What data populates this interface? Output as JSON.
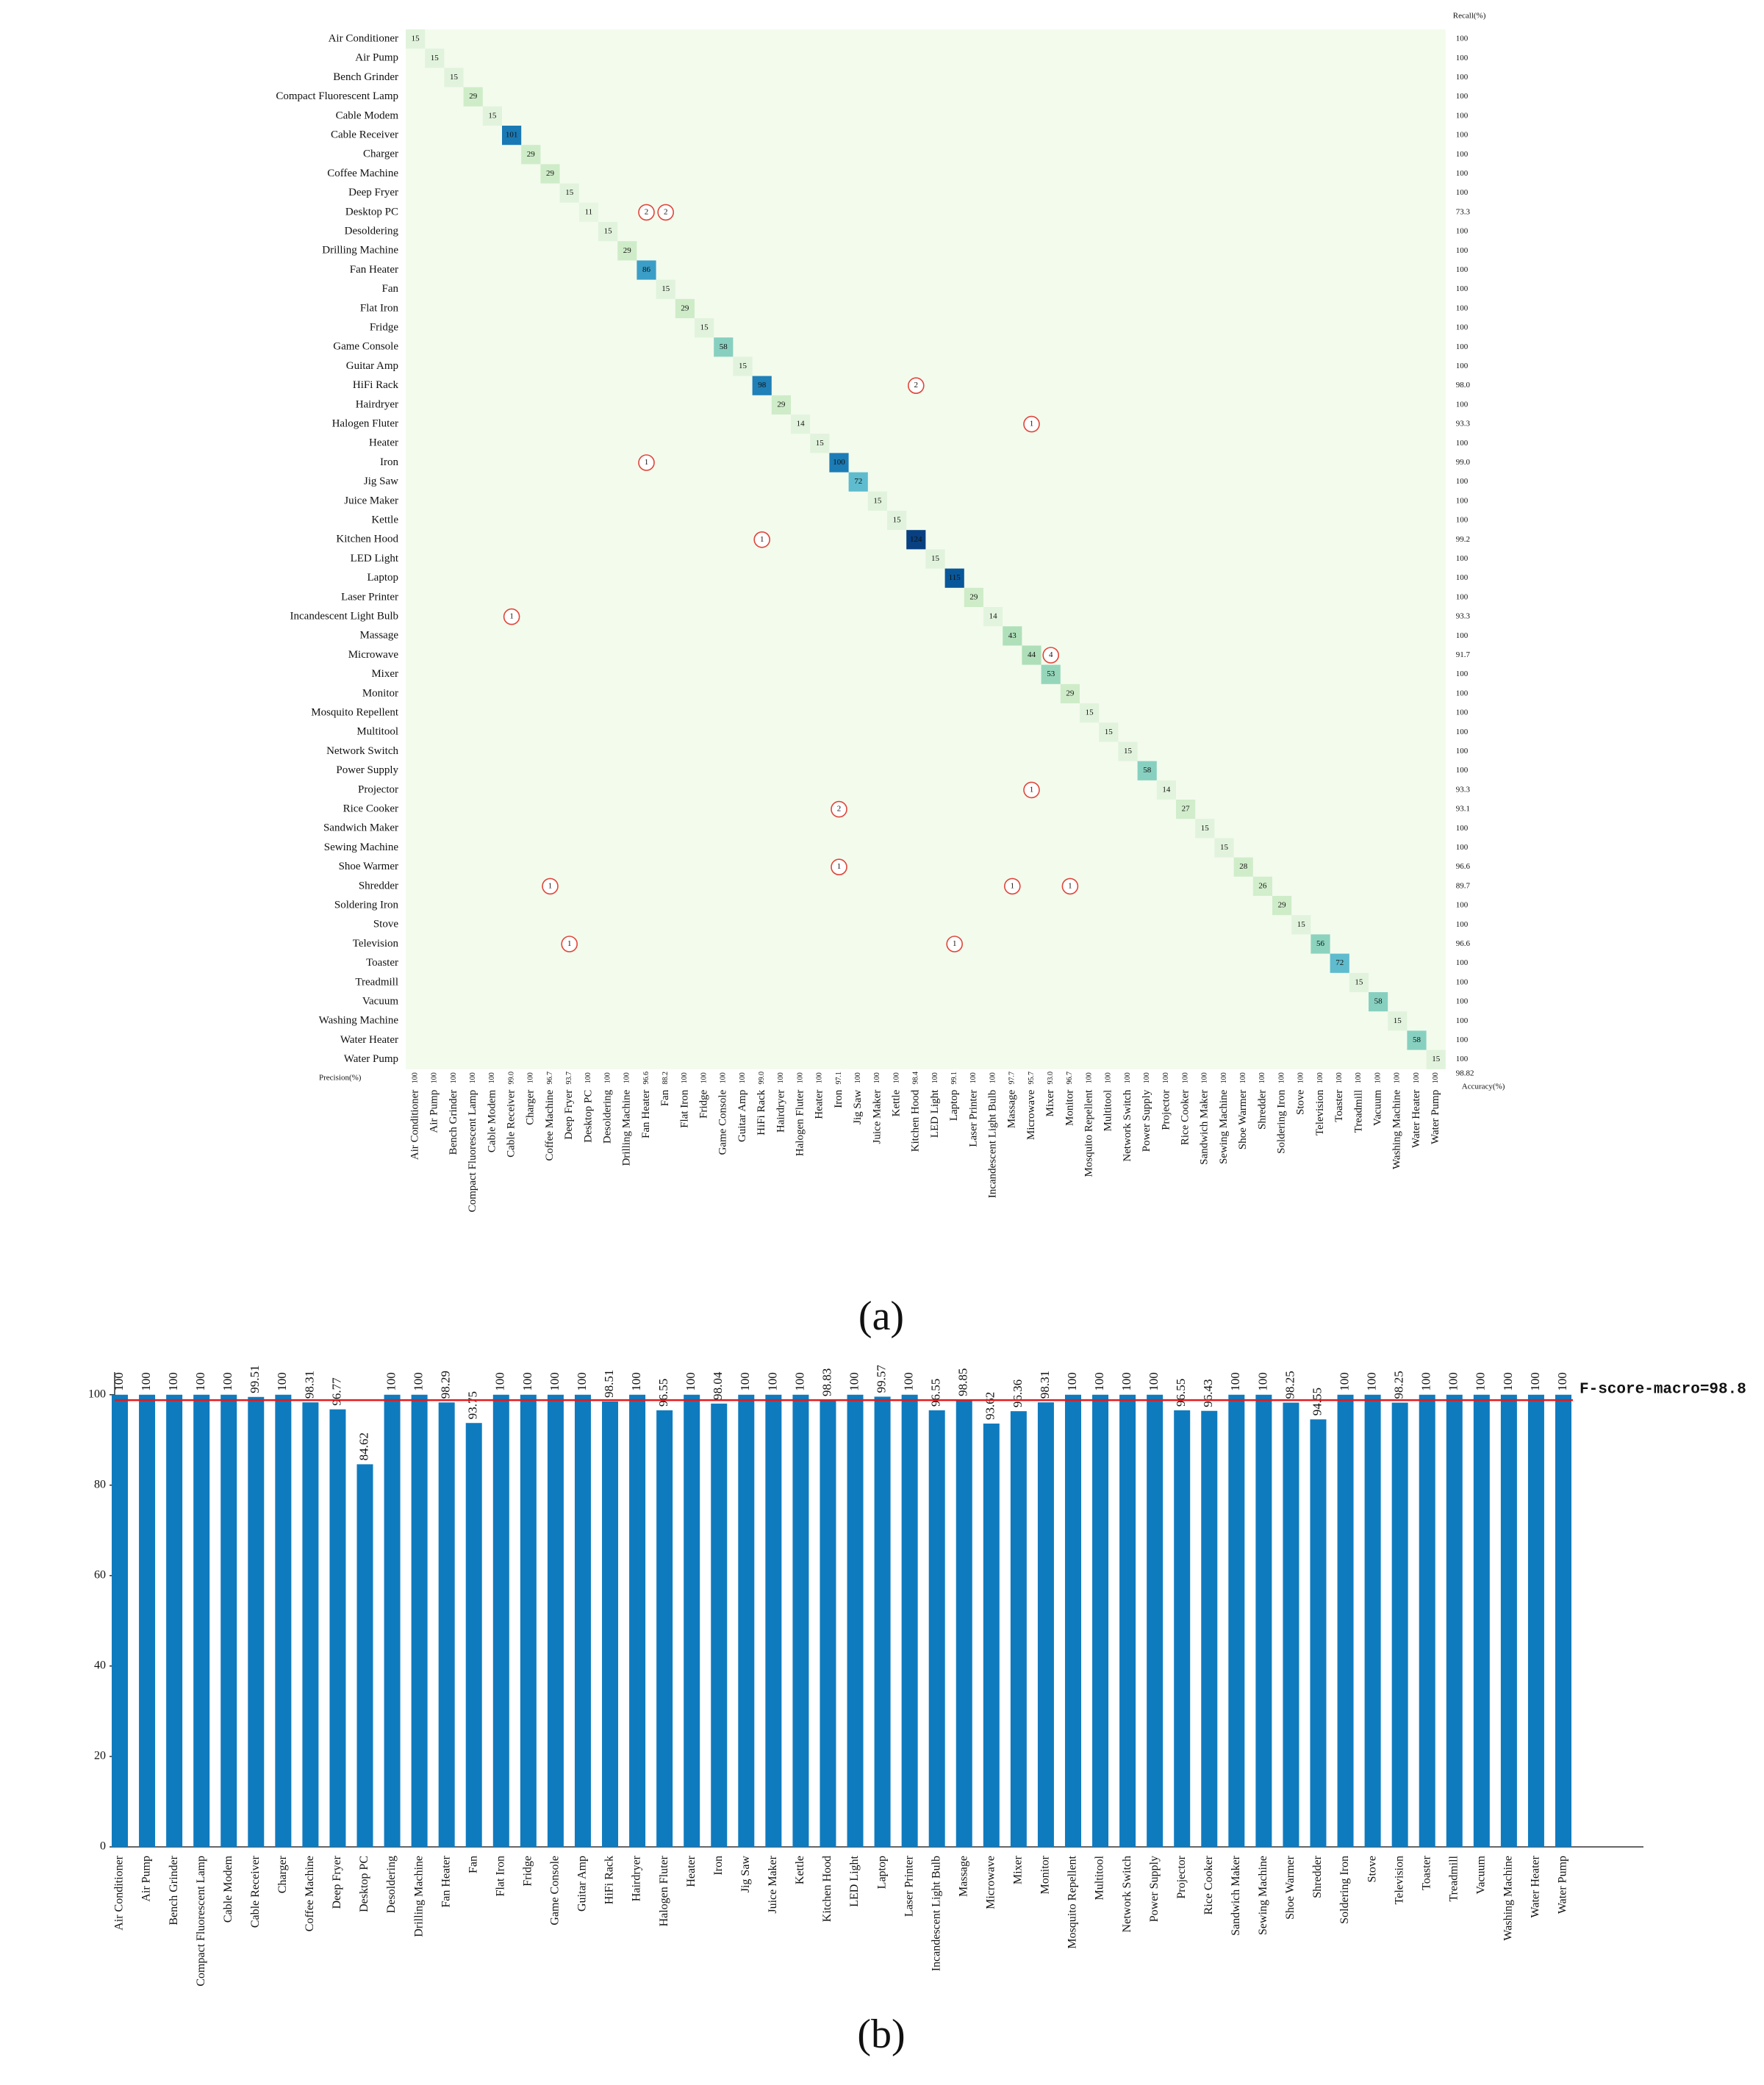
{
  "chart_data": [
    {
      "type": "confusion_matrix",
      "colormap": "GnBu",
      "caption": "(a)",
      "classes": [
        "Air Conditioner",
        "Air Pump",
        "Bench Grinder",
        "Compact Fluorescent Lamp",
        "Cable Modem",
        "Cable Receiver",
        "Charger",
        "Coffee Machine",
        "Deep Fryer",
        "Desktop PC",
        "Desoldering",
        "Drilling Machine",
        "Fan Heater",
        "Fan",
        "Flat Iron",
        "Fridge",
        "Game Console",
        "Guitar Amp",
        "HiFi Rack",
        "Hairdryer",
        "Halogen Fluter",
        "Heater",
        "Iron",
        "Jig Saw",
        "Juice Maker",
        "Kettle",
        "Kitchen Hood",
        "LED Light",
        "Laptop",
        "Laser Printer",
        "Incandescent Light Bulb",
        "Massage",
        "Microwave",
        "Mixer",
        "Monitor",
        "Mosquito Repellent",
        "Multitool",
        "Network Switch",
        "Power Supply",
        "Projector",
        "Rice Cooker",
        "Sandwich Maker",
        "Sewing Machine",
        "Shoe Warmer",
        "Shredder",
        "Soldering Iron",
        "Stove",
        "Television",
        "Toaster",
        "Treadmill",
        "Vacuum",
        "Washing Machine",
        "Water Heater",
        "Water Pump"
      ],
      "diagonal": [
        15,
        15,
        15,
        29,
        15,
        101,
        29,
        29,
        15,
        11,
        15,
        29,
        86,
        15,
        29,
        15,
        58,
        15,
        98,
        29,
        14,
        15,
        100,
        72,
        15,
        15,
        124,
        15,
        115,
        29,
        14,
        43,
        44,
        53,
        29,
        15,
        15,
        15,
        58,
        14,
        27,
        15,
        15,
        28,
        26,
        29,
        15,
        56,
        72,
        15,
        58,
        15,
        58,
        15
      ],
      "errors": [
        {
          "row": 9,
          "col": 12,
          "value": 2
        },
        {
          "row": 9,
          "col": 13,
          "value": 2
        },
        {
          "row": 18,
          "col": 26,
          "value": 2
        },
        {
          "row": 20,
          "col": 32,
          "value": 1
        },
        {
          "row": 22,
          "col": 12,
          "value": 1
        },
        {
          "row": 26,
          "col": 18,
          "value": 1
        },
        {
          "row": 30,
          "col": 5,
          "value": 1
        },
        {
          "row": 32,
          "col": 33,
          "value": 4
        },
        {
          "row": 39,
          "col": 32,
          "value": 1
        },
        {
          "row": 40,
          "col": 22,
          "value": 2
        },
        {
          "row": 43,
          "col": 22,
          "value": 1
        },
        {
          "row": 44,
          "col": 7,
          "value": 1
        },
        {
          "row": 44,
          "col": 31,
          "value": 1
        },
        {
          "row": 44,
          "col": 34,
          "value": 1
        },
        {
          "row": 47,
          "col": 8,
          "value": 1
        },
        {
          "row": 47,
          "col": 28,
          "value": 1
        }
      ],
      "recall_label": "Recall(%)",
      "recall": [
        "100",
        "100",
        "100",
        "100",
        "100",
        "100",
        "100",
        "100",
        "100",
        "73.3",
        "100",
        "100",
        "100",
        "100",
        "100",
        "100",
        "100",
        "100",
        "98.0",
        "100",
        "93.3",
        "100",
        "99.0",
        "100",
        "100",
        "100",
        "99.2",
        "100",
        "100",
        "100",
        "93.3",
        "100",
        "91.7",
        "100",
        "100",
        "100",
        "100",
        "100",
        "100",
        "93.3",
        "93.1",
        "100",
        "100",
        "96.6",
        "89.7",
        "100",
        "100",
        "96.6",
        "100",
        "100",
        "100",
        "100",
        "100",
        "100"
      ],
      "precision_label": "Precision(%)",
      "precision": [
        "100",
        "100",
        "100",
        "100",
        "100",
        "99.0",
        "100",
        "96.7",
        "93.7",
        "100",
        "100",
        "100",
        "96.6",
        "88.2",
        "100",
        "100",
        "100",
        "100",
        "99.0",
        "100",
        "100",
        "100",
        "97.1",
        "100",
        "100",
        "100",
        "98.4",
        "100",
        "99.1",
        "100",
        "100",
        "97.7",
        "95.7",
        "93.0",
        "96.7",
        "100",
        "100",
        "100",
        "100",
        "100",
        "100",
        "100",
        "100",
        "100",
        "100",
        "100",
        "100",
        "100",
        "100",
        "100",
        "100",
        "100",
        "100",
        "100"
      ],
      "accuracy_label": "Accuracy(%)",
      "accuracy": "98.82"
    },
    {
      "type": "bar",
      "caption": "(b)",
      "color": "#0f7bbf",
      "categories": [
        "Air Conditioner",
        "Air Pump",
        "Bench Grinder",
        "Compact Fluorescent Lamp",
        "Cable Modem",
        "Cable Receiver",
        "Charger",
        "Coffee Machine",
        "Deep Fryer",
        "Desktop PC",
        "Desoldering",
        "Drilling Machine",
        "Fan Heater",
        "Fan",
        "Flat Iron",
        "Fridge",
        "Game Console",
        "Guitar Amp",
        "HiFi Rack",
        "Hairdryer",
        "Halogen Fluter",
        "Heater",
        "Iron",
        "Jig Saw",
        "Juice Maker",
        "Kettle",
        "Kitchen Hood",
        "LED Light",
        "Laptop",
        "Laser Printer",
        "Incandescent Light Bulb",
        "Massage",
        "Microwave",
        "Mixer",
        "Monitor",
        "Mosquito Repellent",
        "Multitool",
        "Network Switch",
        "Power Supply",
        "Projector",
        "Rice Cooker",
        "Sandwich Maker",
        "Sewing Machine",
        "Shoe Warmer",
        "Shredder",
        "Soldering Iron",
        "Stove",
        "Television",
        "Toaster",
        "Treadmill",
        "Vacuum",
        "Washing Machine",
        "Water Heater",
        "Water Pump"
      ],
      "values": [
        100,
        100,
        100,
        100,
        100,
        99.51,
        100,
        98.31,
        96.77,
        84.62,
        100,
        100,
        98.29,
        93.75,
        100,
        100,
        100,
        100,
        98.51,
        100,
        96.55,
        100,
        98.04,
        100,
        100,
        100,
        98.83,
        100,
        99.57,
        100,
        96.55,
        98.85,
        93.62,
        96.36,
        98.31,
        100,
        100,
        100,
        100,
        96.55,
        96.43,
        100,
        100,
        98.25,
        94.55,
        100,
        100,
        98.25,
        100,
        100,
        100,
        100,
        100,
        100
      ],
      "ylim": [
        0,
        105
      ],
      "yticks": [
        0,
        20,
        40,
        60,
        80,
        100
      ],
      "reference": {
        "value": 98.8,
        "label": "F-score-macro=98.8",
        "color": "#e41a1c"
      }
    }
  ]
}
